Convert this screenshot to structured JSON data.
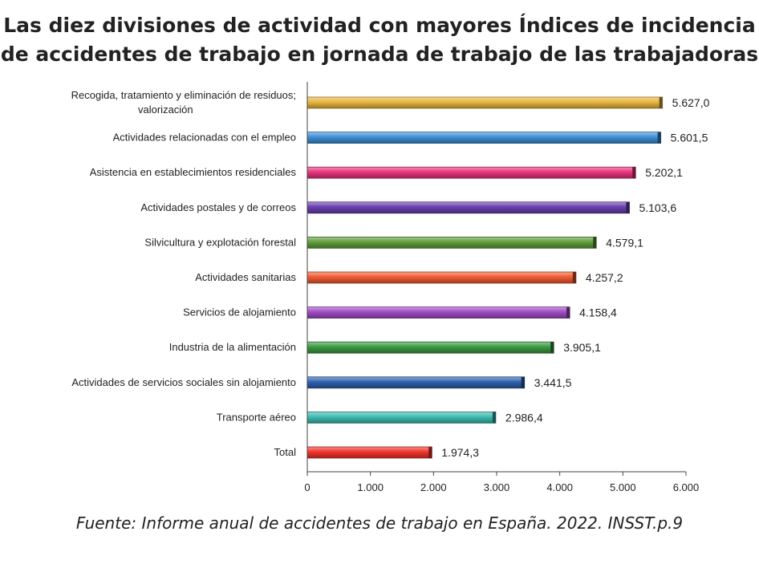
{
  "title_line1": "Las diez divisiones de actividad con mayores Índices de incidencia",
  "title_line2": "de accidentes de trabajo en jornada de trabajo de las trabajadoras",
  "source": "Fuente: Informe anual de accidentes de trabajo en España. 2022. INSST.p.9",
  "chart_data": {
    "type": "bar",
    "orientation": "horizontal",
    "categories": [
      [
        "Recogida, tratamiento y eliminación de residuos;",
        "valorización"
      ],
      [
        "Actividades relacionadas con el empleo"
      ],
      [
        "Asistencia en establecimientos residenciales"
      ],
      [
        "Actividades postales y de correos"
      ],
      [
        "Silvicultura y explotación forestal"
      ],
      [
        "Actividades sanitarias"
      ],
      [
        "Servicios de alojamiento"
      ],
      [
        "Industria de la alimentación"
      ],
      [
        "Actividades de servicios sociales sin alojamiento"
      ],
      [
        "Transporte aéreo"
      ],
      [
        "Total"
      ]
    ],
    "values": [
      5627.0,
      5601.5,
      5202.1,
      5103.6,
      4579.1,
      4257.2,
      4158.4,
      3905.1,
      3441.5,
      2986.4,
      1974.3
    ],
    "value_labels": [
      "5.627,0",
      "5.601,5",
      "5.202,1",
      "5.103,6",
      "4.579,1",
      "4.257,2",
      "4.158,4",
      "3.905,1",
      "3.441,5",
      "2.986,4",
      "1.974,3"
    ],
    "colors": [
      "#E8B53E",
      "#3D8FD6",
      "#E8347E",
      "#6A3FB0",
      "#5F9E3A",
      "#F15B31",
      "#A14BC4",
      "#3A9A42",
      "#2F62B0",
      "#3DBBB1",
      "#F2342C"
    ],
    "xlim": [
      0,
      6000
    ],
    "xticks": [
      0,
      1000,
      2000,
      3000,
      4000,
      5000,
      6000
    ],
    "xtick_labels": [
      "0",
      "1.000",
      "2.000",
      "3.000",
      "4.000",
      "5.000",
      "6.000"
    ],
    "grid": false,
    "legend": "none"
  }
}
